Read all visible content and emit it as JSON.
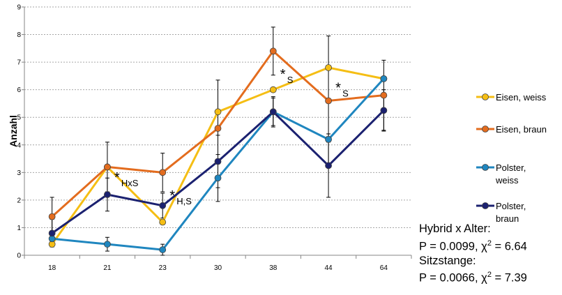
{
  "chart_data": {
    "type": "line",
    "ylabel": "Anzahl",
    "xlabel": "",
    "categories": [
      "18",
      "21",
      "23",
      "30",
      "38",
      "44",
      "64"
    ],
    "ylim": [
      0,
      9
    ],
    "yticks": [
      0,
      1,
      2,
      3,
      4,
      5,
      6,
      7,
      8,
      9
    ],
    "grid": true,
    "legend_position": "right",
    "series": [
      {
        "name": "Eisen, weiss",
        "color": "#F5BE14",
        "values": [
          0.4,
          3.2,
          1.2,
          5.2,
          6.0,
          6.8,
          6.4
        ],
        "errors": [
          null,
          null,
          null,
          null,
          null,
          null,
          null
        ]
      },
      {
        "name": "Eisen, braun",
        "color": "#E36C1E",
        "values": [
          1.4,
          3.2,
          3.0,
          4.6,
          7.4,
          5.6,
          5.8
        ],
        "errors": [
          0.7,
          0.9,
          0.7,
          1.75,
          0.87,
          2.35,
          1.27
        ]
      },
      {
        "name": "Polster, weiss",
        "color": "#1F86BF",
        "values": [
          0.6,
          0.4,
          0.2,
          2.8,
          5.2,
          4.2,
          6.4
        ],
        "errors": [
          0.1,
          0.25,
          0.2,
          0.85,
          0.55,
          0.1,
          null
        ]
      },
      {
        "name": "Polster, braun",
        "color": "#1B2170",
        "values": [
          0.8,
          2.2,
          1.8,
          3.4,
          5.2,
          3.25,
          5.25
        ],
        "errors": [
          0.5,
          0.6,
          0.45,
          0.95,
          0.5,
          1.15,
          0.75
        ]
      }
    ],
    "annotations": [
      {
        "star": "*",
        "sub": "HxS",
        "x": "21",
        "y": 2.8
      },
      {
        "star": "*",
        "sub": "H,S",
        "x": "23",
        "y": 2.15
      },
      {
        "star": "*",
        "sub": "S",
        "x": "38",
        "y": 6.55
      },
      {
        "star": "*",
        "sub": "S",
        "x": "44",
        "y": 6.05
      }
    ]
  },
  "stats": {
    "line1": "Hybrid x Alter:",
    "line2_prefix": "P = 0.0099, χ",
    "line2_sup": "2",
    "line2_suffix": " = 6.64",
    "line3": "Sitzstange:",
    "line4_prefix": "P = 0.0066, χ",
    "line4_sup": "2",
    "line4_suffix": " = 7.39"
  }
}
